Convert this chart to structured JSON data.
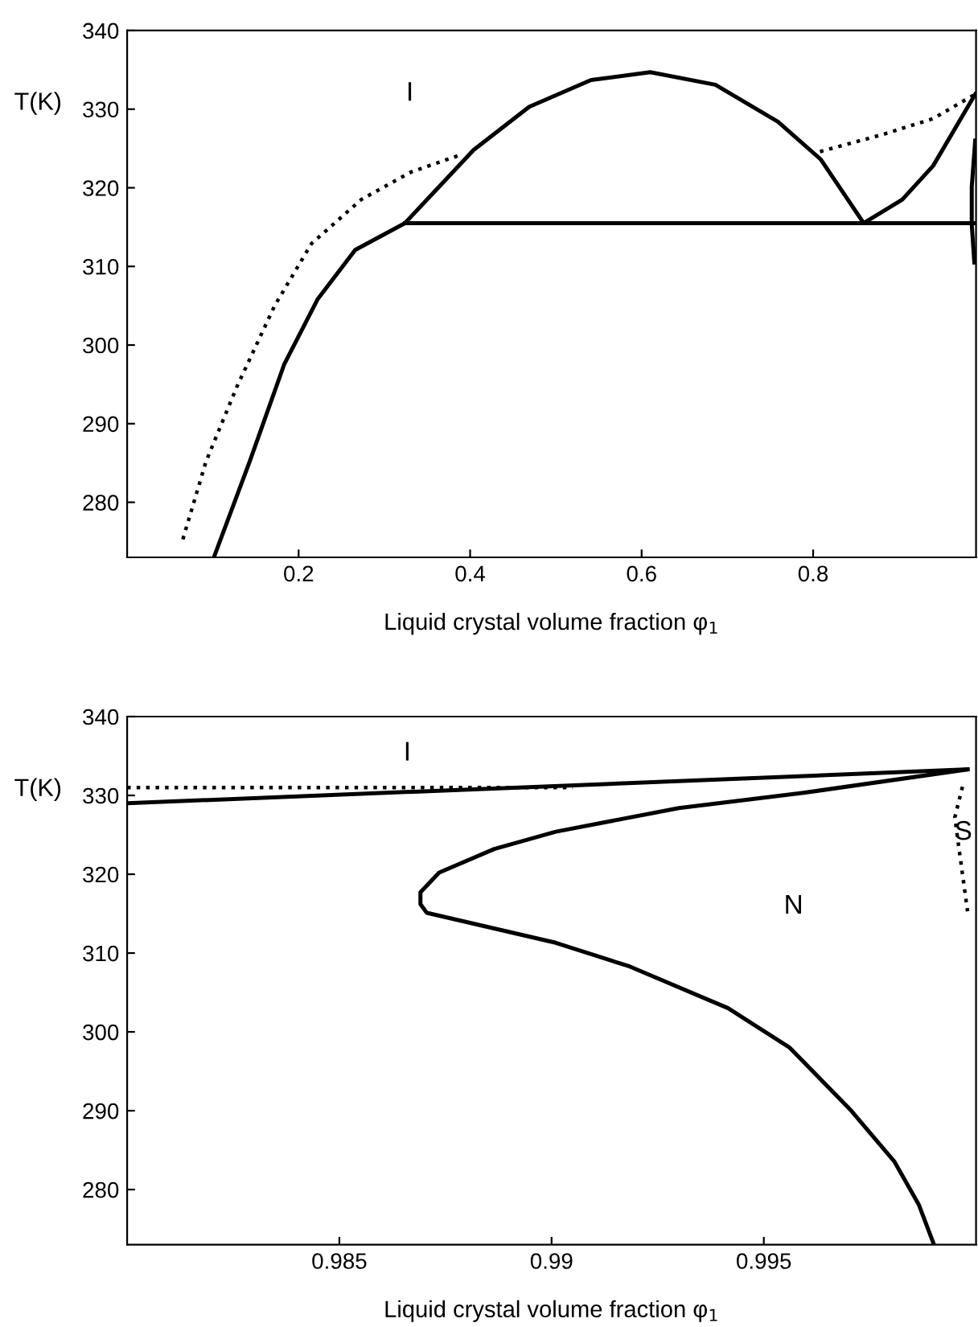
{
  "chart_data": [
    {
      "type": "line",
      "xlabel": "Liquid crystal volume fraction φ$_{1}$",
      "ylabel": "T(K)",
      "xlim": [
        0,
        0.99
      ],
      "ylim": [
        273,
        340
      ],
      "xticks": [
        0.2,
        0.4,
        0.6,
        0.8
      ],
      "yticks": [
        280,
        290,
        300,
        310,
        320,
        330,
        340
      ],
      "grid": false,
      "legend": false,
      "annotations": [
        "I"
      ],
      "series": [
        {
          "color": "#000000",
          "line_style": "solid",
          "x": [
            0.1015,
            0.143,
            0.183,
            0.222,
            0.266,
            0.324,
            0.36,
            0.404,
            0.469,
            0.541,
            0.61,
            0.686,
            0.759,
            0.809,
            0.859,
            0.904,
            0.94,
            0.989
          ],
          "values": [
            273.1,
            285.2,
            297.5,
            305.8,
            312.1,
            315.5,
            319.7,
            324.8,
            330.3,
            333.7,
            334.7,
            333.1,
            328.4,
            323.6,
            315.5,
            318.5,
            322.8,
            331.9
          ]
        },
        {
          "color": "#000000",
          "line_style": "solid",
          "x": [
            0.324,
            0.989
          ],
          "values": [
            315.5,
            315.5
          ]
        },
        {
          "color": "#000000",
          "line_style": "solid",
          "x": [
            0.989,
            0.985,
            0.985,
            0.988
          ],
          "values": [
            326.0,
            320.1,
            315.3,
            310.5
          ]
        },
        {
          "color": "#000000",
          "line_style": "dotted",
          "x": [
            0.065,
            0.092,
            0.128,
            0.172,
            0.215,
            0.273,
            0.331,
            0.389
          ],
          "values": [
            275.3,
            285.2,
            294.7,
            305.0,
            312.9,
            318.5,
            322.0,
            324.2
          ]
        },
        {
          "color": "#000000",
          "line_style": "dotted",
          "x": [
            0.808,
            0.882,
            0.94,
            0.989
          ],
          "values": [
            324.6,
            326.8,
            328.8,
            331.9
          ]
        }
      ]
    },
    {
      "type": "line",
      "xlabel": "Liquid crystal volume fraction φ$_{1}$",
      "ylabel": "T(K)",
      "xlim": [
        0.98,
        1.0
      ],
      "ylim": [
        273,
        340
      ],
      "xticks": [
        0.985,
        0.99,
        0.995
      ],
      "yticks": [
        280,
        290,
        300,
        310,
        320,
        330,
        340
      ],
      "grid": false,
      "legend": false,
      "annotations": [
        "I",
        "N",
        "S"
      ],
      "series": [
        {
          "color": "#000000",
          "line_style": "solid",
          "x": [
            0.98,
            0.9998
          ],
          "values": [
            329.0,
            333.3
          ]
        },
        {
          "color": "#000000",
          "line_style": "dotted",
          "x": [
            0.98,
            0.9905
          ],
          "values": [
            331.0,
            331.0
          ]
        },
        {
          "color": "#000000",
          "line_style": "dotted",
          "x": [
            0.99968,
            0.9995,
            0.9996,
            0.9998
          ],
          "values": [
            331.1,
            327.2,
            323.2,
            315.3
          ]
        },
        {
          "color": "#000000",
          "line_style": "solid",
          "x": [
            0.9998,
            0.9959,
            0.993,
            0.9901,
            0.98865,
            0.98735,
            0.98691,
            0.98691,
            0.98706,
            0.9901,
            0.99184,
            0.99416,
            0.99561,
            0.99706,
            0.99807,
            0.99865,
            0.99901
          ],
          "values": [
            333.3,
            330.3,
            328.4,
            325.4,
            323.2,
            320.2,
            317.7,
            316.2,
            315.1,
            311.3,
            308.3,
            303.0,
            298.0,
            290.0,
            283.6,
            278.1,
            273.0
          ]
        }
      ]
    }
  ]
}
